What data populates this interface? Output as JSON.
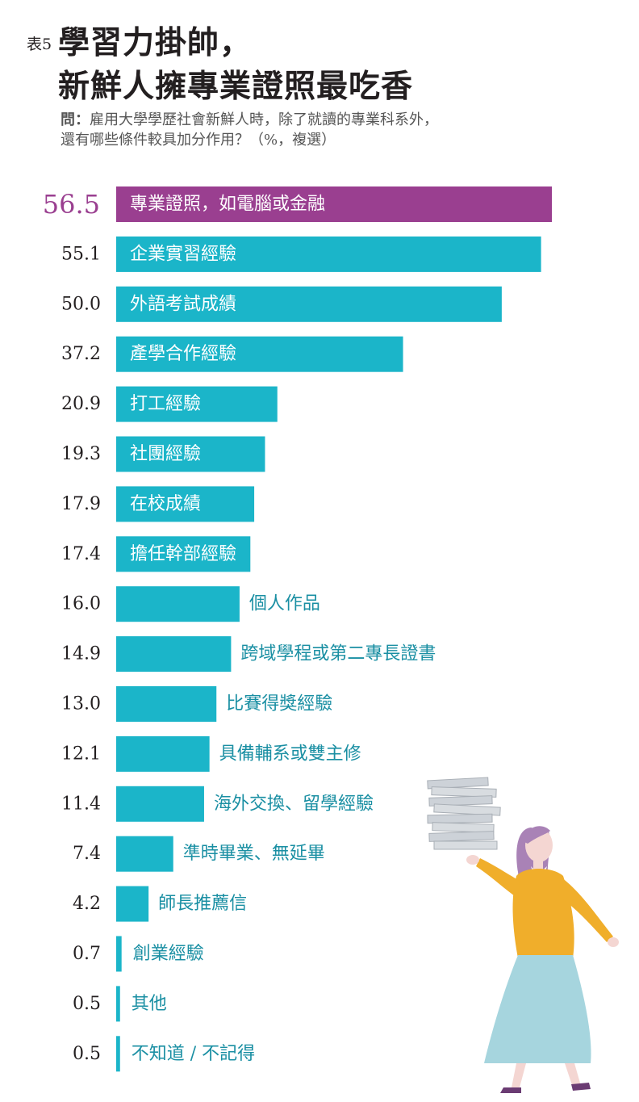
{
  "header": {
    "table_number": "表5",
    "title_line1": "學習力掛帥，",
    "title_line2": "新鮮人擁專業證照最吃香",
    "question_label": "問：",
    "question_line1": "雇用大學學歷社會新鮮人時，除了就讀的專業科系外，",
    "question_line2": "還有哪些條件較具加分作用？（%，複選）"
  },
  "chart_data": {
    "type": "bar",
    "orientation": "horizontal",
    "unit": "%",
    "categories": [
      "專業證照，如電腦或金融",
      "企業實習經驗",
      "外語考試成績",
      "產學合作經驗",
      "打工經驗",
      "社團經驗",
      "在校成績",
      "擔任幹部經驗",
      "個人作品",
      "跨域學程或第二專長證書",
      "比賽得獎經驗",
      "具備輔系或雙主修",
      "海外交換、留學經驗",
      "準時畢業、無延畢",
      "師長推薦信",
      "創業經驗",
      "其他",
      "不知道 / 不記得"
    ],
    "values": [
      56.5,
      55.1,
      50.0,
      37.2,
      20.9,
      19.3,
      17.9,
      17.4,
      16.0,
      14.9,
      13.0,
      12.1,
      11.4,
      7.4,
      4.2,
      0.7,
      0.5,
      0.5
    ],
    "value_labels": [
      "56.5",
      "55.1",
      "50.0",
      "37.2",
      "20.9",
      "19.3",
      "17.9",
      "17.4",
      "16.0",
      "14.9",
      "13.0",
      "12.1",
      "11.4",
      "7.4",
      "4.2",
      "0.7",
      "0.5",
      "0.5"
    ],
    "highlight_index": 0,
    "colors": {
      "highlight": "#9a3f90",
      "bar": "#1bb5c9",
      "label_inside": "#ffffff",
      "label_outside": "#1a8fa3",
      "value_text": "#231f20"
    },
    "grid": false,
    "legend": "none"
  },
  "illustration": {
    "icon": "woman-carrying-paper-stack-icon",
    "colors": {
      "sweater": "#f0ae2b",
      "skirt": "#a6d5de",
      "hair": "#a982b6",
      "skin": "#f4d6d2",
      "papers": "#cdd2d8"
    }
  }
}
